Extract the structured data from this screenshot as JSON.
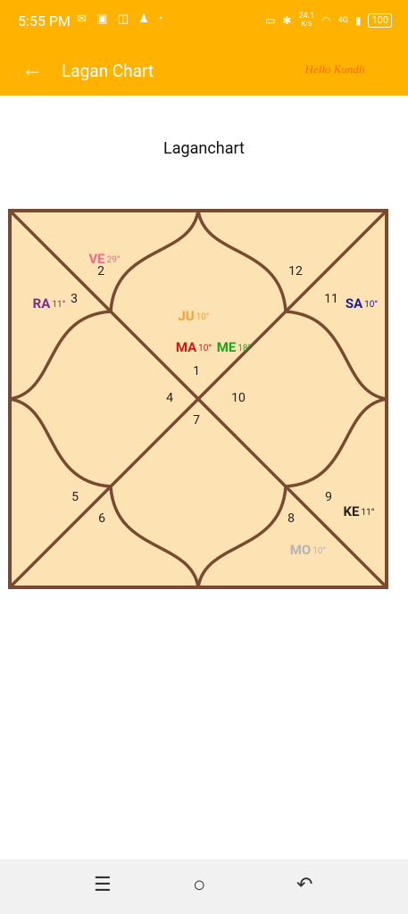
{
  "status": {
    "time": "5:55 PM",
    "left_icons": "✉ ▣ ◫ ♟ •",
    "speed": "24.1",
    "speed_unit": "K/S",
    "signal": "4G",
    "battery": "100"
  },
  "app_bar": {
    "title": "Lagan Chart",
    "brand": "Hello Kundli"
  },
  "page": {
    "title": "Laganchart"
  },
  "chart": {
    "box_color": "#7a4a30",
    "fill_color": "#fde3b4",
    "planets": [
      {
        "abbr": "VE",
        "deg": "29°",
        "color": "#f06a8c"
      },
      {
        "abbr": "RA",
        "deg": "11°",
        "color": "#7b2d8c"
      },
      {
        "abbr": "JU",
        "deg": "10°",
        "color": "#f4a03a"
      },
      {
        "abbr": "MA",
        "deg": "10°",
        "color": "#cc1b14"
      },
      {
        "abbr": "ME",
        "deg": "18°",
        "color": "#1fa21f"
      },
      {
        "abbr": "SA",
        "deg": "10°",
        "color": "#1b1b9b"
      },
      {
        "abbr": "KE",
        "deg": "11°",
        "color": "#222222"
      },
      {
        "abbr": "MO",
        "deg": "10°",
        "color": "#b4b4b4"
      }
    ],
    "houses": [
      "2",
      "12",
      "3",
      "11",
      "1",
      "4",
      "10",
      "7",
      "5",
      "9",
      "6",
      "8"
    ]
  },
  "nav": {
    "recents_icon": "recents-icon",
    "home_icon": "home-icon",
    "back_icon": "back-icon"
  }
}
